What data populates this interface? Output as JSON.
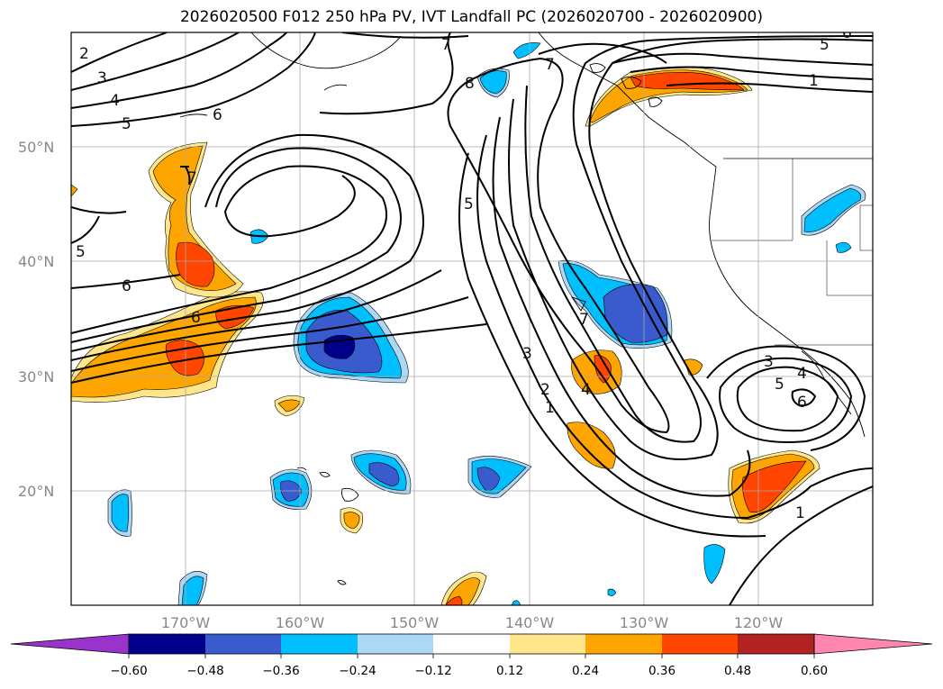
{
  "title": "2026020500 F012 250 hPa PV, IVT Landfall PC (2026020700 - 2026020900)",
  "latitude_labels": [
    "50°N",
    "40°N",
    "30°N",
    "20°N"
  ],
  "longitude_labels": [
    "170°W",
    "160°W",
    "150°W",
    "140°W",
    "130°W",
    "120°W"
  ],
  "colorbar": {
    "tick_labels": [
      "−0.60",
      "−0.48",
      "−0.36",
      "−0.24",
      "−0.12",
      "0.12",
      "0.24",
      "0.36",
      "0.48",
      "0.60"
    ],
    "colors": [
      "#9933cc",
      "#00008b",
      "#3a5bcd",
      "#00bfff",
      "#add8f5",
      "#ffffff",
      "#ffe68a",
      "#ffa500",
      "#ff4500",
      "#b22222",
      "#ff86b0"
    ]
  },
  "contour_labels": [
    "1",
    "2",
    "3",
    "4",
    "5",
    "6",
    "7",
    "8"
  ],
  "map_labels": {
    "pv_1_east": "1",
    "pv_1_south": "1",
    "pv_1_se": "1",
    "pv_2_center": "2",
    "pv_2_nw": "2",
    "pv_3_center": "3",
    "pv_3_nw": "3",
    "pv_3_cutoff": "3",
    "pv_4_center": "4",
    "pv_4_nw": "4",
    "pv_4_cutoff": "4",
    "pv_5_ne": "5",
    "pv_5_nw": "5",
    "pv_5_center": "5",
    "pv_5_west": "5",
    "pv_5_cutoff": "5",
    "pv_6_nw": "6",
    "pv_6_west": "6",
    "pv_6_band": "6",
    "pv_6_ne": "6",
    "pv_6_cutoff": "6",
    "pv_7_north": "7",
    "pv_7_nw": "7",
    "pv_7_center": "7",
    "pv_7_ridge": "7",
    "pv_8_north": "8"
  }
}
